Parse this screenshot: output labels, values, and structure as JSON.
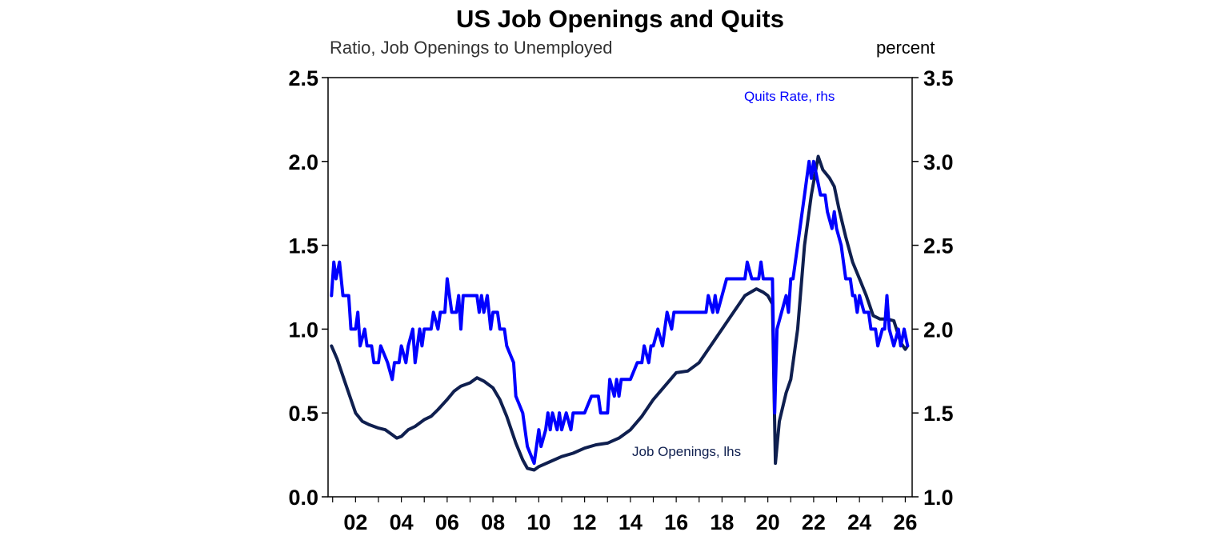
{
  "chart_data": {
    "type": "line",
    "title": "US Job Openings and Quits",
    "left_axis_label": "Ratio, Job Openings to Unemployed",
    "right_axis_label": "percent",
    "x_range": [
      2000.8,
      2026.3
    ],
    "x_ticks": [
      2002,
      2004,
      2006,
      2008,
      2010,
      2012,
      2014,
      2016,
      2018,
      2020,
      2022,
      2024,
      2026
    ],
    "x_tick_labels": [
      "02",
      "04",
      "06",
      "08",
      "10",
      "12",
      "14",
      "16",
      "18",
      "20",
      "22",
      "24",
      "26"
    ],
    "ylim_left": [
      0,
      2.5
    ],
    "y_ticks_left": [
      "0.0",
      "0.5",
      "1.0",
      "1.5",
      "2.0",
      "2.5"
    ],
    "ylim_right": [
      1.0,
      3.5
    ],
    "y_ticks_right": [
      "1.0",
      "1.5",
      "2.0",
      "2.5",
      "3.0",
      "3.5"
    ],
    "grid": false,
    "series": [
      {
        "name": "Job Openings, lhs",
        "axis": "left",
        "color": "#0f1f4f",
        "points": [
          [
            2000.95,
            0.9
          ],
          [
            2001.2,
            0.82
          ],
          [
            2001.5,
            0.7
          ],
          [
            2001.8,
            0.58
          ],
          [
            2002.0,
            0.5
          ],
          [
            2002.3,
            0.45
          ],
          [
            2002.6,
            0.43
          ],
          [
            2003.0,
            0.41
          ],
          [
            2003.3,
            0.4
          ],
          [
            2003.6,
            0.37
          ],
          [
            2003.8,
            0.35
          ],
          [
            2004.0,
            0.36
          ],
          [
            2004.3,
            0.4
          ],
          [
            2004.6,
            0.42
          ],
          [
            2005.0,
            0.46
          ],
          [
            2005.3,
            0.48
          ],
          [
            2005.6,
            0.52
          ],
          [
            2006.0,
            0.58
          ],
          [
            2006.3,
            0.63
          ],
          [
            2006.6,
            0.66
          ],
          [
            2007.0,
            0.68
          ],
          [
            2007.3,
            0.71
          ],
          [
            2007.6,
            0.69
          ],
          [
            2008.0,
            0.65
          ],
          [
            2008.3,
            0.58
          ],
          [
            2008.6,
            0.48
          ],
          [
            2009.0,
            0.32
          ],
          [
            2009.3,
            0.22
          ],
          [
            2009.5,
            0.17
          ],
          [
            2009.8,
            0.16
          ],
          [
            2010.0,
            0.18
          ],
          [
            2010.5,
            0.21
          ],
          [
            2011.0,
            0.24
          ],
          [
            2011.5,
            0.26
          ],
          [
            2012.0,
            0.29
          ],
          [
            2012.5,
            0.31
          ],
          [
            2013.0,
            0.32
          ],
          [
            2013.5,
            0.35
          ],
          [
            2014.0,
            0.4
          ],
          [
            2014.5,
            0.48
          ],
          [
            2015.0,
            0.58
          ],
          [
            2015.5,
            0.66
          ],
          [
            2016.0,
            0.74
          ],
          [
            2016.5,
            0.75
          ],
          [
            2017.0,
            0.8
          ],
          [
            2017.5,
            0.9
          ],
          [
            2018.0,
            1.0
          ],
          [
            2018.5,
            1.1
          ],
          [
            2019.0,
            1.2
          ],
          [
            2019.5,
            1.24
          ],
          [
            2019.8,
            1.22
          ],
          [
            2020.0,
            1.2
          ],
          [
            2020.2,
            1.15
          ],
          [
            2020.33,
            0.2
          ],
          [
            2020.5,
            0.45
          ],
          [
            2020.8,
            0.62
          ],
          [
            2021.0,
            0.7
          ],
          [
            2021.3,
            1.0
          ],
          [
            2021.6,
            1.5
          ],
          [
            2021.9,
            1.8
          ],
          [
            2022.2,
            2.03
          ],
          [
            2022.4,
            1.95
          ],
          [
            2022.7,
            1.9
          ],
          [
            2022.9,
            1.85
          ],
          [
            2023.1,
            1.72
          ],
          [
            2023.4,
            1.55
          ],
          [
            2023.7,
            1.4
          ],
          [
            2024.0,
            1.3
          ],
          [
            2024.3,
            1.2
          ],
          [
            2024.6,
            1.08
          ],
          [
            2024.9,
            1.06
          ],
          [
            2025.2,
            1.06
          ],
          [
            2025.5,
            1.05
          ],
          [
            2025.8,
            0.92
          ],
          [
            2026.0,
            0.88
          ],
          [
            2026.1,
            0.9
          ]
        ]
      },
      {
        "name": "Quits Rate, rhs",
        "axis": "right",
        "color": "#0000ff",
        "points": [
          [
            2000.95,
            2.2
          ],
          [
            2001.05,
            2.4
          ],
          [
            2001.15,
            2.3
          ],
          [
            2001.3,
            2.4
          ],
          [
            2001.45,
            2.2
          ],
          [
            2001.7,
            2.2
          ],
          [
            2001.8,
            2.0
          ],
          [
            2002.0,
            2.0
          ],
          [
            2002.1,
            2.1
          ],
          [
            2002.2,
            1.9
          ],
          [
            2002.4,
            2.0
          ],
          [
            2002.5,
            1.9
          ],
          [
            2002.7,
            1.9
          ],
          [
            2002.8,
            1.8
          ],
          [
            2003.0,
            1.8
          ],
          [
            2003.1,
            1.9
          ],
          [
            2003.4,
            1.8
          ],
          [
            2003.6,
            1.7
          ],
          [
            2003.7,
            1.8
          ],
          [
            2003.9,
            1.8
          ],
          [
            2004.0,
            1.9
          ],
          [
            2004.2,
            1.8
          ],
          [
            2004.3,
            1.9
          ],
          [
            2004.5,
            2.0
          ],
          [
            2004.6,
            1.8
          ],
          [
            2004.8,
            2.0
          ],
          [
            2004.9,
            1.9
          ],
          [
            2005.0,
            2.0
          ],
          [
            2005.3,
            2.0
          ],
          [
            2005.4,
            2.1
          ],
          [
            2005.6,
            2.0
          ],
          [
            2005.7,
            2.1
          ],
          [
            2005.9,
            2.1
          ],
          [
            2006.0,
            2.3
          ],
          [
            2006.2,
            2.1
          ],
          [
            2006.4,
            2.1
          ],
          [
            2006.5,
            2.2
          ],
          [
            2006.6,
            2.0
          ],
          [
            2006.7,
            2.2
          ],
          [
            2007.0,
            2.2
          ],
          [
            2007.3,
            2.2
          ],
          [
            2007.4,
            2.1
          ],
          [
            2007.5,
            2.2
          ],
          [
            2007.6,
            2.1
          ],
          [
            2007.75,
            2.2
          ],
          [
            2007.9,
            2.0
          ],
          [
            2008.0,
            2.1
          ],
          [
            2008.2,
            2.1
          ],
          [
            2008.3,
            2.0
          ],
          [
            2008.5,
            2.0
          ],
          [
            2008.6,
            1.9
          ],
          [
            2008.9,
            1.8
          ],
          [
            2009.0,
            1.6
          ],
          [
            2009.3,
            1.5
          ],
          [
            2009.5,
            1.3
          ],
          [
            2009.8,
            1.2
          ],
          [
            2009.9,
            1.3
          ],
          [
            2010.0,
            1.4
          ],
          [
            2010.1,
            1.3
          ],
          [
            2010.3,
            1.4
          ],
          [
            2010.4,
            1.5
          ],
          [
            2010.5,
            1.4
          ],
          [
            2010.6,
            1.5
          ],
          [
            2010.8,
            1.4
          ],
          [
            2010.9,
            1.5
          ],
          [
            2011.0,
            1.4
          ],
          [
            2011.2,
            1.5
          ],
          [
            2011.4,
            1.4
          ],
          [
            2011.5,
            1.5
          ],
          [
            2012.0,
            1.5
          ],
          [
            2012.3,
            1.6
          ],
          [
            2012.6,
            1.6
          ],
          [
            2012.7,
            1.5
          ],
          [
            2013.0,
            1.5
          ],
          [
            2013.1,
            1.7
          ],
          [
            2013.3,
            1.6
          ],
          [
            2013.4,
            1.7
          ],
          [
            2013.5,
            1.6
          ],
          [
            2013.6,
            1.7
          ],
          [
            2014.0,
            1.7
          ],
          [
            2014.3,
            1.8
          ],
          [
            2014.5,
            1.8
          ],
          [
            2014.6,
            1.9
          ],
          [
            2014.8,
            1.8
          ],
          [
            2014.9,
            1.9
          ],
          [
            2015.0,
            1.9
          ],
          [
            2015.2,
            2.0
          ],
          [
            2015.4,
            1.9
          ],
          [
            2015.5,
            2.0
          ],
          [
            2015.6,
            2.1
          ],
          [
            2015.8,
            2.0
          ],
          [
            2015.9,
            2.1
          ],
          [
            2016.0,
            2.1
          ],
          [
            2017.0,
            2.1
          ],
          [
            2017.3,
            2.1
          ],
          [
            2017.4,
            2.2
          ],
          [
            2017.6,
            2.1
          ],
          [
            2017.7,
            2.2
          ],
          [
            2017.8,
            2.1
          ],
          [
            2018.0,
            2.2
          ],
          [
            2018.2,
            2.3
          ],
          [
            2019.0,
            2.3
          ],
          [
            2019.1,
            2.4
          ],
          [
            2019.3,
            2.3
          ],
          [
            2019.6,
            2.3
          ],
          [
            2019.7,
            2.4
          ],
          [
            2019.8,
            2.3
          ],
          [
            2020.2,
            2.3
          ],
          [
            2020.3,
            1.5
          ],
          [
            2020.4,
            2.0
          ],
          [
            2020.6,
            2.1
          ],
          [
            2020.8,
            2.2
          ],
          [
            2020.9,
            2.1
          ],
          [
            2021.0,
            2.3
          ],
          [
            2021.1,
            2.3
          ],
          [
            2021.3,
            2.5
          ],
          [
            2021.5,
            2.7
          ],
          [
            2021.6,
            2.8
          ],
          [
            2021.7,
            2.9
          ],
          [
            2021.8,
            3.0
          ],
          [
            2021.9,
            2.9
          ],
          [
            2022.0,
            3.0
          ],
          [
            2022.15,
            2.9
          ],
          [
            2022.3,
            2.8
          ],
          [
            2022.5,
            2.8
          ],
          [
            2022.6,
            2.7
          ],
          [
            2022.8,
            2.6
          ],
          [
            2022.9,
            2.7
          ],
          [
            2023.0,
            2.6
          ],
          [
            2023.2,
            2.5
          ],
          [
            2023.4,
            2.3
          ],
          [
            2023.6,
            2.3
          ],
          [
            2023.7,
            2.2
          ],
          [
            2023.8,
            2.2
          ],
          [
            2023.9,
            2.1
          ],
          [
            2024.0,
            2.2
          ],
          [
            2024.2,
            2.1
          ],
          [
            2024.4,
            2.1
          ],
          [
            2024.5,
            2.0
          ],
          [
            2024.7,
            2.0
          ],
          [
            2024.8,
            1.9
          ],
          [
            2025.0,
            2.0
          ],
          [
            2025.1,
            2.0
          ],
          [
            2025.2,
            2.2
          ],
          [
            2025.3,
            2.0
          ],
          [
            2025.5,
            1.9
          ],
          [
            2025.7,
            2.0
          ],
          [
            2025.8,
            1.9
          ],
          [
            2025.95,
            2.0
          ],
          [
            2026.1,
            1.9
          ]
        ]
      }
    ]
  }
}
